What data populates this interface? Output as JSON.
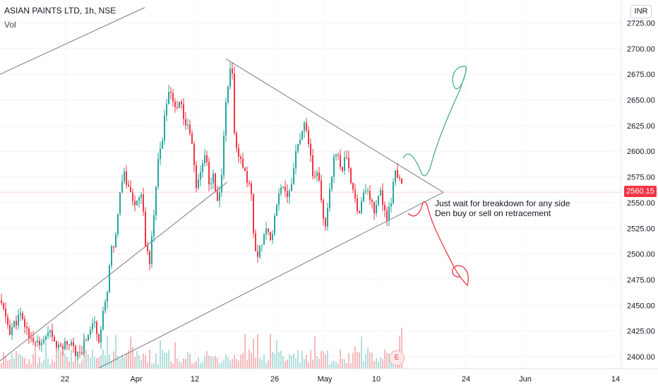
{
  "header": {
    "title": "ASIAN PAINTS LTD, 1h, NSE",
    "volume_label": "Vol"
  },
  "currency": "INR",
  "last_price_label": "2560.15",
  "earnings_marker": "E",
  "annotations": [
    "Just wait for breakdown for any side",
    "Den buy or sell on retracement"
  ],
  "colors": {
    "up": "#26a69a",
    "down": "#f23645",
    "volume_up": "#b2dfdb",
    "volume_down": "#f7b9bd",
    "trendline": "#787b86",
    "bullish_drawing": "#4caf85",
    "bearish_drawing": "#f23645"
  },
  "chart_data": {
    "type": "candlestick",
    "symbol": "ASIAN PAINTS LTD",
    "interval": "1h",
    "exchange": "NSE",
    "y_axis": {
      "ticks": [
        2400,
        2425,
        2450,
        2475,
        2500,
        2525,
        2550,
        2575,
        2600,
        2625,
        2650,
        2675,
        2700,
        2725
      ],
      "tick_labels": [
        "2400.00",
        "2425.00",
        "2450.00",
        "2475.00",
        "2500.00",
        "2525.00",
        "2550.00",
        "2575.00",
        "2600.00",
        "2625.00",
        "2650.00",
        "2675.00",
        "2700.00",
        "2725.00"
      ],
      "range": [
        2389,
        2740
      ]
    },
    "x_axis": {
      "labels": [
        "22",
        "Apr",
        "12",
        "26",
        "May",
        "10",
        "24",
        "Jun",
        "14"
      ]
    },
    "last_price": 2560.15,
    "price_path": [
      [
        0,
        2455
      ],
      [
        14,
        2425
      ],
      [
        28,
        2440
      ],
      [
        42,
        2420
      ],
      [
        56,
        2410
      ],
      [
        70,
        2422
      ],
      [
        84,
        2408
      ],
      [
        98,
        2415
      ],
      [
        112,
        2400
      ],
      [
        126,
        2425
      ],
      [
        134,
        2435
      ],
      [
        140,
        2418
      ],
      [
        150,
        2455
      ],
      [
        158,
        2505
      ],
      [
        165,
        2520
      ],
      [
        170,
        2565
      ],
      [
        176,
        2578
      ],
      [
        184,
        2560
      ],
      [
        192,
        2548
      ],
      [
        200,
        2562
      ],
      [
        206,
        2512
      ],
      [
        212,
        2492
      ],
      [
        218,
        2535
      ],
      [
        224,
        2590
      ],
      [
        230,
        2610
      ],
      [
        236,
        2650
      ],
      [
        242,
        2660
      ],
      [
        248,
        2640
      ],
      [
        254,
        2650
      ],
      [
        260,
        2632
      ],
      [
        266,
        2625
      ],
      [
        272,
        2610
      ],
      [
        278,
        2565
      ],
      [
        284,
        2580
      ],
      [
        290,
        2600
      ],
      [
        296,
        2570
      ],
      [
        302,
        2575
      ],
      [
        308,
        2550
      ],
      [
        314,
        2575
      ],
      [
        320,
        2650
      ],
      [
        326,
        2680
      ],
      [
        328,
        2688
      ],
      [
        332,
        2620
      ],
      [
        338,
        2595
      ],
      [
        344,
        2585
      ],
      [
        350,
        2570
      ],
      [
        356,
        2560
      ],
      [
        360,
        2510
      ],
      [
        366,
        2500
      ],
      [
        372,
        2515
      ],
      [
        378,
        2530
      ],
      [
        384,
        2510
      ],
      [
        390,
        2545
      ],
      [
        396,
        2560
      ],
      [
        402,
        2570
      ],
      [
        408,
        2555
      ],
      [
        414,
        2575
      ],
      [
        420,
        2600
      ],
      [
        426,
        2615
      ],
      [
        432,
        2625
      ],
      [
        438,
        2600
      ],
      [
        444,
        2575
      ],
      [
        450,
        2580
      ],
      [
        456,
        2545
      ],
      [
        460,
        2520
      ],
      [
        466,
        2560
      ],
      [
        472,
        2590
      ],
      [
        478,
        2600
      ],
      [
        484,
        2580
      ],
      [
        490,
        2595
      ],
      [
        496,
        2572
      ],
      [
        502,
        2560
      ],
      [
        508,
        2540
      ],
      [
        514,
        2555
      ],
      [
        520,
        2565
      ],
      [
        526,
        2550
      ],
      [
        532,
        2540
      ],
      [
        538,
        2568
      ],
      [
        544,
        2540
      ],
      [
        548,
        2535
      ],
      [
        554,
        2550
      ],
      [
        560,
        2582
      ],
      [
        566,
        2575
      ],
      [
        570,
        2560
      ]
    ],
    "trendlines": [
      {
        "name": "upper-falling",
        "from": [
          320,
          2690
        ],
        "to": [
          628,
          2560
        ]
      },
      {
        "name": "lower-rising",
        "from": [
          140,
          2389
        ],
        "to": [
          628,
          2560
        ]
      },
      {
        "name": "channel-middle",
        "from": [
          0,
          2396
        ],
        "to": [
          322,
          2570
        ]
      },
      {
        "name": "channel-upper",
        "from": [
          0,
          2675
        ],
        "to": [
          205,
          2740
        ]
      }
    ]
  }
}
